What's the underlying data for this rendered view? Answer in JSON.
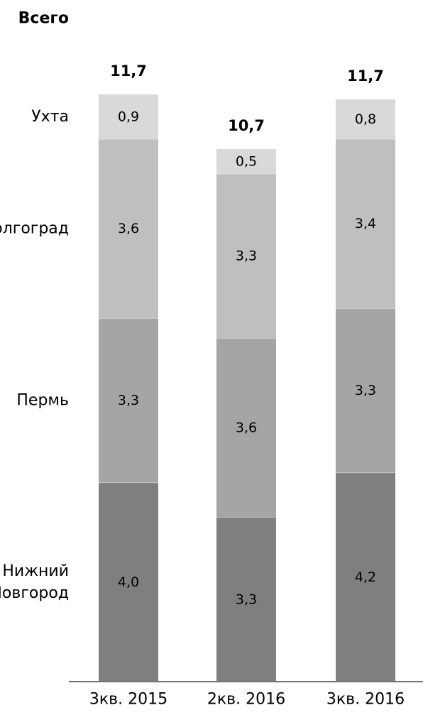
{
  "chart_data": {
    "type": "bar",
    "stacked": true,
    "categories": [
      "3кв. 2015",
      "2кв. 2016",
      "3кв. 2016"
    ],
    "series": [
      {
        "name": "Нижний Новгород",
        "label_lines": [
          "Нижний",
          "Новгород"
        ],
        "values": [
          4.0,
          3.3,
          4.2
        ],
        "value_labels": [
          "4,0",
          "3,3",
          "4,2"
        ],
        "color": "#7f7f7f"
      },
      {
        "name": "Пермь",
        "label_lines": [
          "Пермь"
        ],
        "values": [
          3.3,
          3.6,
          3.3
        ],
        "value_labels": [
          "3,3",
          "3,6",
          "3,3"
        ],
        "color": "#a5a5a5"
      },
      {
        "name": "Волгоград",
        "label_lines": [
          "Волгоград"
        ],
        "values": [
          3.6,
          3.3,
          3.4
        ],
        "value_labels": [
          "3,6",
          "3,3",
          "3,4"
        ],
        "color": "#bfbfbf"
      },
      {
        "name": "Ухта",
        "label_lines": [
          "Ухта"
        ],
        "values": [
          0.9,
          0.5,
          0.8
        ],
        "value_labels": [
          "0,9",
          "0,5",
          "0,8"
        ],
        "color": "#d9d9d9"
      }
    ],
    "totals_header": "Всего",
    "totals": [
      11.7,
      10.7,
      11.7
    ],
    "total_labels": [
      "11,7",
      "10,7",
      "11,7"
    ],
    "axis_color": "#8064a2",
    "title": "",
    "xlabel": "",
    "ylabel": "",
    "ylim": [
      0,
      11.7
    ],
    "legend": "left-side row labels"
  }
}
